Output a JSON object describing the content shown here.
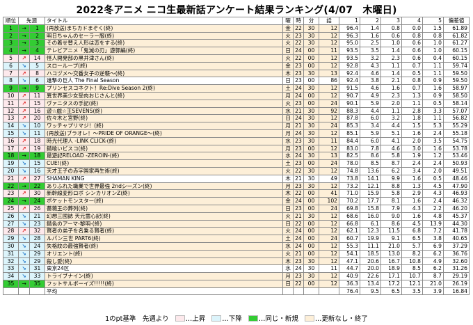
{
  "title": "2022冬アニメ ニコ生最新話アンケート結果ランキング(4/07　木曜日)",
  "headers": {
    "rank": "順位",
    "prev": "先週",
    "title": "タイトル",
    "day": "曜",
    "hour": "時",
    "minute": "分",
    "ep": "話",
    "s1": "1",
    "s2": "2",
    "s3": "3",
    "s4": "4",
    "s5": "5",
    "dev": "偏差値"
  },
  "colors": {
    "same_new": "#33cc33",
    "up": "#fde9ec",
    "down": "#dcf4fb",
    "ended": "#fdefd8",
    "arrow_up": "#e02020",
    "arrow_down": "#1a73c9"
  },
  "rows": [
    {
      "rank": "1",
      "arrow": "→",
      "prev": "1",
      "title": "(再放送)まちカドまぞく(終)",
      "day": "金",
      "hour": "22",
      "minute": "30",
      "ep": "12",
      "v1": "96.4",
      "v2": "1.4",
      "v3": "0.8",
      "v4": "0.0",
      "v5": "1.5",
      "dev": "61.89",
      "row": "g",
      "titlebg": "y",
      "arrowtype": "eq"
    },
    {
      "rank": "2",
      "arrow": "→",
      "prev": "2",
      "title": "明日ちゃんのセーラー服(終)",
      "day": "火",
      "hour": "23",
      "minute": "30",
      "ep": "12",
      "v1": "96.3",
      "v2": "1.6",
      "v3": "0.6",
      "v4": "0.8",
      "v5": "0.8",
      "dev": "61.82",
      "row": "g",
      "titlebg": "y",
      "arrowtype": "eq"
    },
    {
      "rank": "3",
      "arrow": "→",
      "prev": "3",
      "title": "その着せ替え人形は恋をする(終)",
      "day": "火",
      "hour": "22",
      "minute": "30",
      "ep": "12",
      "v1": "95.0",
      "v2": "2.5",
      "v3": "1.0",
      "v4": "0.6",
      "v5": "1.0",
      "dev": "61.27",
      "row": "g",
      "titlebg": "y",
      "arrowtype": "eq"
    },
    {
      "rank": "4",
      "arrow": "→",
      "prev": "4",
      "title": "テレビアニメ「鬼滅の刃」遊郭編(終)",
      "day": "日",
      "hour": "24",
      "minute": "00",
      "ep": "11",
      "v1": "93.5",
      "v2": "3.5",
      "v3": "1.4",
      "v4": "0.6",
      "v5": "1.0",
      "dev": "60.15",
      "row": "g",
      "titlebg": "y",
      "arrowtype": "eq"
    },
    {
      "rank": "5",
      "arrow": "↗",
      "prev": "14",
      "title": "怪人開発部の黒井津さん(終)",
      "day": "火",
      "hour": "22",
      "minute": "00",
      "ep": "12",
      "v1": "93.5",
      "v2": "3.2",
      "v3": "2.3",
      "v4": "0.6",
      "v5": "0.4",
      "dev": "60.15",
      "row": "p",
      "titlebg": "y",
      "arrowtype": "up"
    },
    {
      "rank": "6",
      "arrow": "↘",
      "prev": "5",
      "title": "スローループ(終)",
      "day": "金",
      "hour": "23",
      "minute": "00",
      "ep": "12",
      "v1": "92.8",
      "v2": "4.3",
      "v3": "1.1",
      "v4": "0.7",
      "v5": "1.1",
      "dev": "59.74",
      "row": "b",
      "titlebg": "y",
      "arrowtype": "dn"
    },
    {
      "rank": "7",
      "arrow": "↗",
      "prev": "8",
      "title": "ハコヅメ～交番女子の逆襲～(終)",
      "day": "木",
      "hour": "23",
      "minute": "30",
      "ep": "13",
      "v1": "92.4",
      "v2": "4.6",
      "v3": "1.4",
      "v4": "0.5",
      "v5": "1.1",
      "dev": "59.50",
      "row": "p",
      "titlebg": "y",
      "arrowtype": "up"
    },
    {
      "rank": "8",
      "arrow": "↘",
      "prev": "6",
      "title": "進撃の巨人 The Final Season",
      "day": "日",
      "hour": "23",
      "minute": "00",
      "ep": "86",
      "v1": "92.4",
      "v2": "3.8",
      "v3": "2.1",
      "v4": "0.8",
      "v5": "0.9",
      "dev": "59.50",
      "row": "b",
      "titlebg": "",
      "arrowtype": "dn"
    },
    {
      "rank": "9",
      "arrow": "→",
      "prev": "9",
      "title": "プリンセスコネクト！Re:Dive Season 2(終)",
      "day": "土",
      "hour": "24",
      "minute": "30",
      "ep": "12",
      "v1": "91.5",
      "v2": "4.6",
      "v3": "1.6",
      "v4": "0.7",
      "v5": "1.6",
      "dev": "58.97",
      "row": "g",
      "titlebg": "y",
      "arrowtype": "eq"
    },
    {
      "rank": "10",
      "arrow": "↗",
      "prev": "11",
      "title": "異世界美少女受肉おじさんと(終)",
      "day": "月",
      "hour": "24",
      "minute": "00",
      "ep": "12",
      "v1": "90.7",
      "v2": "4.9",
      "v3": "2.3",
      "v4": "1.3",
      "v5": "0.9",
      "dev": "58.50",
      "row": "p",
      "titlebg": "y",
      "arrowtype": "up"
    },
    {
      "rank": "11",
      "arrow": "↗",
      "prev": "15",
      "title": "ヴァニタスの手記(終)",
      "day": "火",
      "hour": "23",
      "minute": "00",
      "ep": "24",
      "v1": "90.1",
      "v2": "5.9",
      "v3": "2.0",
      "v4": "1.1",
      "v5": "0.5",
      "dev": "58.14",
      "row": "p",
      "titlebg": "y",
      "arrowtype": "up"
    },
    {
      "rank": "12",
      "arrow": "↗",
      "prev": "16",
      "title": "遊☆戯☆王SEVENS(終)",
      "day": "水",
      "hour": "21",
      "minute": "30",
      "ep": "92",
      "v1": "88.3",
      "v2": "4.4",
      "v3": "1.1",
      "v4": "2.8",
      "v5": "3.3",
      "dev": "57.07",
      "row": "p",
      "titlebg": "y",
      "arrowtype": "up"
    },
    {
      "rank": "13",
      "arrow": "↗",
      "prev": "20",
      "title": "佐々木と宮野(終)",
      "day": "日",
      "hour": "24",
      "minute": "30",
      "ep": "12",
      "v1": "87.8",
      "v2": "6.0",
      "v3": "3.2",
      "v4": "1.8",
      "v5": "1.1",
      "dev": "56.82",
      "row": "p",
      "titlebg": "y",
      "arrowtype": "up"
    },
    {
      "rank": "14",
      "arrow": "↘",
      "prev": "10",
      "title": "ワッチャプリマジ！(終)",
      "day": "月",
      "hour": "21",
      "minute": "30",
      "ep": "24",
      "v1": "85.3",
      "v2": "3.4",
      "v3": "4.4",
      "v4": "1.5",
      "v5": "5.3",
      "dev": "55.29",
      "row": "b",
      "titlebg": "y",
      "arrowtype": "dn"
    },
    {
      "rank": "15",
      "arrow": "↘",
      "prev": "11",
      "title": "(再放送)ブラオレ！～PRIDE OF ORANGE～(終)",
      "day": "月",
      "hour": "24",
      "minute": "30",
      "ep": "12",
      "v1": "85.1",
      "v2": "5.9",
      "v3": "5.1",
      "v4": "1.6",
      "v5": "2.4",
      "dev": "55.18",
      "row": "b",
      "titlebg": "y",
      "arrowtype": "dn"
    },
    {
      "rank": "16",
      "arrow": "↗",
      "prev": "18",
      "title": "時光代理人 -LINK CLICK-(終)",
      "day": "水",
      "hour": "23",
      "minute": "30",
      "ep": "11",
      "v1": "84.4",
      "v2": "6.0",
      "v3": "4.1",
      "v4": "2.0",
      "v5": "3.5",
      "dev": "54.75",
      "row": "p",
      "titlebg": "y",
      "arrowtype": "up"
    },
    {
      "rank": "17",
      "arrow": "↗",
      "prev": "19",
      "title": "錆喰いビスコ(終)",
      "day": "月",
      "hour": "23",
      "minute": "00",
      "ep": "12",
      "v1": "83.0",
      "v2": "7.8",
      "v3": "4.6",
      "v4": "3.0",
      "v5": "1.6",
      "dev": "53.78",
      "row": "p",
      "titlebg": "y",
      "arrowtype": "up"
    },
    {
      "rank": "18",
      "arrow": "→",
      "prev": "18",
      "title": "最遊記RELOAD -ZEROIN-(終)",
      "day": "水",
      "hour": "24",
      "minute": "30",
      "ep": "13",
      "v1": "82.5",
      "v2": "8.6",
      "v3": "5.8",
      "v4": "1.9",
      "v5": "1.2",
      "dev": "53.46",
      "row": "g",
      "titlebg": "y",
      "arrowtype": "eq"
    },
    {
      "rank": "19",
      "arrow": "↘",
      "prev": "15",
      "title": "CUE!(終)",
      "day": "土",
      "hour": "23",
      "minute": "00",
      "ep": "24",
      "v1": "78.0",
      "v2": "8.5",
      "v3": "8.7",
      "v4": "2.4",
      "v5": "2.4",
      "dev": "50.93",
      "row": "b",
      "titlebg": "y",
      "arrowtype": "dn"
    },
    {
      "rank": "20",
      "arrow": "↘",
      "prev": "16",
      "title": "天才王子の赤字国家再生術(終)",
      "day": "火",
      "hour": "22",
      "minute": "30",
      "ep": "12",
      "v1": "74.8",
      "v2": "13.6",
      "v3": "6.2",
      "v4": "3.4",
      "v5": "2.0",
      "dev": "49.51",
      "row": "b",
      "titlebg": "y",
      "arrowtype": "dn"
    },
    {
      "rank": "21",
      "arrow": "↗",
      "prev": "27",
      "title": "SHAMAN KING",
      "day": "木",
      "hour": "21",
      "minute": "30",
      "ep": "49",
      "v1": "73.8",
      "v2": "14.1",
      "v3": "9.9",
      "v4": "1.6",
      "v5": "0.5",
      "dev": "48.46",
      "row": "p",
      "titlebg": "",
      "arrowtype": "up"
    },
    {
      "rank": "22",
      "arrow": "→",
      "prev": "22",
      "title": "ありふれた職業で世界最強 2ndシーズン(終)",
      "day": "月",
      "hour": "23",
      "minute": "30",
      "ep": "12",
      "v1": "73.2",
      "v2": "12.1",
      "v3": "8.8",
      "v4": "1.3",
      "v5": "4.5",
      "dev": "47.90",
      "row": "g",
      "titlebg": "y",
      "arrowtype": "eq"
    },
    {
      "rank": "23",
      "arrow": "↗",
      "prev": "30",
      "title": "新幹線変形ロボ シンカリオンZ(終)",
      "day": "木",
      "hour": "22",
      "minute": "00",
      "ep": "41",
      "v1": "71.0",
      "v2": "15.9",
      "v3": "5.8",
      "v4": "2.9",
      "v5": "4.3",
      "dev": "46.93",
      "row": "p",
      "titlebg": "y",
      "arrowtype": "up"
    },
    {
      "rank": "24",
      "arrow": "→",
      "prev": "24",
      "title": "ポケットモンスター(終)",
      "day": "金",
      "hour": "24",
      "minute": "00",
      "ep": "102",
      "v1": "70.2",
      "v2": "17.7",
      "v3": "8.1",
      "v4": "1.6",
      "v5": "2.4",
      "dev": "46.32",
      "row": "g",
      "titlebg": "y",
      "arrowtype": "eq"
    },
    {
      "rank": "25",
      "arrow": "↗",
      "prev": "26",
      "title": "薔薇王の葬列(終)",
      "day": "日",
      "hour": "23",
      "minute": "00",
      "ep": "24",
      "v1": "69.8",
      "v2": "15.8",
      "v3": "7.9",
      "v4": "4.3",
      "v5": "2.2",
      "dev": "46.20",
      "row": "p",
      "titlebg": "y",
      "arrowtype": "up"
    },
    {
      "rank": "26",
      "arrow": "↘",
      "prev": "21",
      "title": "幻想三國誌 天元霊心記(終)",
      "day": "火",
      "hour": "21",
      "minute": "30",
      "ep": "12",
      "v1": "68.6",
      "v2": "16.0",
      "v3": "9.0",
      "v4": "1.6",
      "v5": "4.8",
      "dev": "45.37",
      "row": "b",
      "titlebg": "y",
      "arrowtype": "dn"
    },
    {
      "rank": "27",
      "arrow": "↘",
      "prev": "23",
      "title": "錆色のアーマ-黎明-(終)",
      "day": "日",
      "hour": "22",
      "minute": "00",
      "ep": "12",
      "v1": "66.8",
      "v2": "6.1",
      "v3": "8.6",
      "v4": "4.5",
      "v5": "13.9",
      "dev": "44.30",
      "row": "b",
      "titlebg": "y",
      "arrowtype": "dn"
    },
    {
      "rank": "28",
      "arrow": "↗",
      "prev": "32",
      "title": "賢者の弟子を名乗る賢者(終)",
      "day": "火",
      "hour": "24",
      "minute": "00",
      "ep": "12",
      "v1": "62.1",
      "v2": "12.3",
      "v3": "11.5",
      "v4": "6.8",
      "v5": "7.2",
      "dev": "41.78",
      "row": "p",
      "titlebg": "y",
      "arrowtype": "up"
    },
    {
      "rank": "29",
      "arrow": "↘",
      "prev": "28",
      "title": "ルパン三世 PART6(終)",
      "day": "土",
      "hour": "24",
      "minute": "00",
      "ep": "24",
      "v1": "60.7",
      "v2": "19.9",
      "v3": "9.1",
      "v4": "6.5",
      "v5": "3.8",
      "dev": "40.65",
      "row": "b",
      "titlebg": "y",
      "arrowtype": "dn"
    },
    {
      "rank": "30",
      "arrow": "↘",
      "prev": "24",
      "title": "失格紋の最強賢者(終)",
      "day": "水",
      "hour": "24",
      "minute": "00",
      "ep": "12",
      "v1": "55.3",
      "v2": "11.1",
      "v3": "21.0",
      "v4": "5.7",
      "v5": "6.9",
      "dev": "37.29",
      "row": "b",
      "titlebg": "y",
      "arrowtype": "dn"
    },
    {
      "rank": "31",
      "arrow": "↘",
      "prev": "29",
      "title": "オリエント(終)",
      "day": "火",
      "hour": "21",
      "minute": "00",
      "ep": "12",
      "v1": "54.1",
      "v2": "18.5",
      "v3": "13.0",
      "v4": "8.2",
      "v5": "6.2",
      "dev": "36.76",
      "row": "b",
      "titlebg": "y",
      "arrowtype": "dn"
    },
    {
      "rank": "32",
      "arrow": "↘",
      "prev": "29",
      "title": "殺し愛(終)",
      "day": "木",
      "hour": "23",
      "minute": "30",
      "ep": "12",
      "v1": "47.1",
      "v2": "20.6",
      "v3": "16.7",
      "v4": "10.8",
      "v5": "4.9",
      "dev": "32.60",
      "row": "b",
      "titlebg": "y",
      "arrowtype": "dn"
    },
    {
      "rank": "33",
      "arrow": "↘",
      "prev": "31",
      "title": "東京24区",
      "day": "水",
      "hour": "24",
      "minute": "30",
      "ep": "11",
      "v1": "44.7",
      "v2": "20.0",
      "v3": "18.9",
      "v4": "8.5",
      "v5": "6.2",
      "dev": "31.26",
      "row": "b",
      "titlebg": "",
      "arrowtype": "dn"
    },
    {
      "rank": "34",
      "arrow": "↘",
      "prev": "33",
      "title": "トライブナイン(終)",
      "day": "月",
      "hour": "23",
      "minute": "30",
      "ep": "12",
      "v1": "40.9",
      "v2": "22.6",
      "v3": "17.1",
      "v4": "10.7",
      "v5": "8.7",
      "dev": "29.19",
      "row": "b",
      "titlebg": "y",
      "arrowtype": "dn"
    },
    {
      "rank": "35",
      "arrow": "→",
      "prev": "35",
      "title": "フットサルボーイズ!!!!!(終)",
      "day": "日",
      "hour": "22",
      "minute": "00",
      "ep": "12",
      "v1": "36.3",
      "v2": "13.4",
      "v3": "17.2",
      "v4": "12.1",
      "v5": "21.0",
      "dev": "26.19",
      "row": "g",
      "titlebg": "y",
      "arrowtype": "eq"
    }
  ],
  "avg": {
    "label": "平均",
    "v1": "76.4",
    "v2": "9.5",
    "v3": "6.5",
    "v4": "3.5",
    "v5": "3.9",
    "dev": "16.84"
  },
  "legend": {
    "basis": "1のpt基準　先週より",
    "up": "…上昇",
    "down": "…下降",
    "same": "…同じ・新規",
    "ended": "…更新なし・終了"
  }
}
